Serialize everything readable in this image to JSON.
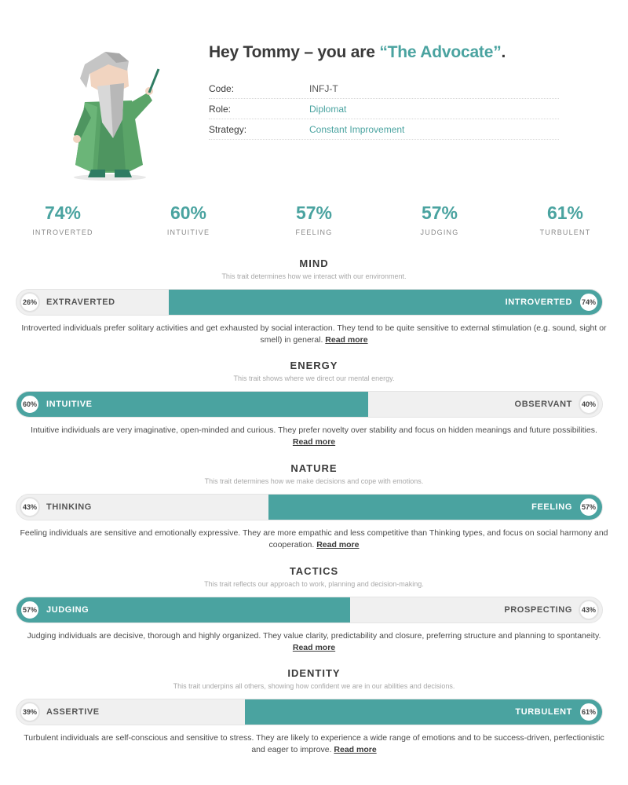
{
  "header": {
    "greeting": "Hey Tommy – you are ",
    "type_name": "“The Advocate”",
    "punct": ".",
    "rows": [
      {
        "label": "Code:",
        "value": "INFJ-T"
      },
      {
        "label": "Role:",
        "value": "Diplomat"
      },
      {
        "label": "Strategy:",
        "value": "Constant Improvement"
      }
    ]
  },
  "summary": [
    {
      "pct": "74%",
      "label": "INTROVERTED"
    },
    {
      "pct": "60%",
      "label": "INTUITIVE"
    },
    {
      "pct": "57%",
      "label": "FEELING"
    },
    {
      "pct": "57%",
      "label": "JUDGING"
    },
    {
      "pct": "61%",
      "label": "TURBULENT"
    }
  ],
  "traits": [
    {
      "title": "MIND",
      "subtitle": "This trait determines how we interact with our environment.",
      "left_pct": "26%",
      "left_name": "EXTRAVERTED",
      "right_pct": "74%",
      "right_name": "INTROVERTED",
      "dominant": "right",
      "dominant_fraction": 0.74,
      "desc": "Introverted individuals prefer solitary activities and get exhausted by social interaction. They tend to be quite sensitive to external stimulation (e.g. sound, sight or smell) in general.",
      "read_more": "Read more"
    },
    {
      "title": "ENERGY",
      "subtitle": "This trait shows where we direct our mental energy.",
      "left_pct": "60%",
      "left_name": "INTUITIVE",
      "right_pct": "40%",
      "right_name": "OBSERVANT",
      "dominant": "left",
      "dominant_fraction": 0.6,
      "desc": "Intuitive individuals are very imaginative, open-minded and curious. They prefer novelty over stability and focus on hidden meanings and future possibilities.",
      "read_more": "Read more"
    },
    {
      "title": "NATURE",
      "subtitle": "This trait determines how we make decisions and cope with emotions.",
      "left_pct": "43%",
      "left_name": "THINKING",
      "right_pct": "57%",
      "right_name": "FEELING",
      "dominant": "right",
      "dominant_fraction": 0.57,
      "desc": "Feeling individuals are sensitive and emotionally expressive. They are more empathic and less competitive than Thinking types, and focus on social harmony and cooperation.",
      "read_more": "Read more"
    },
    {
      "title": "TACTICS",
      "subtitle": "This trait reflects our approach to work, planning and decision-making.",
      "left_pct": "57%",
      "left_name": "JUDGING",
      "right_pct": "43%",
      "right_name": "PROSPECTING",
      "dominant": "left",
      "dominant_fraction": 0.57,
      "desc": "Judging individuals are decisive, thorough and highly organized. They value clarity, predictability and closure, preferring structure and planning to spontaneity.",
      "read_more": "Read more"
    },
    {
      "title": "IDENTITY",
      "subtitle": "This trait underpins all others, showing how confident we are in our abilities and decisions.",
      "left_pct": "39%",
      "left_name": "ASSERTIVE",
      "right_pct": "61%",
      "right_name": "TURBULENT",
      "dominant": "right",
      "dominant_fraction": 0.61,
      "desc": "Turbulent individuals are self-conscious and sensitive to stress. They are likely to experience a wide range of emotions and to be success-driven, perfectionistic and eager to improve.",
      "read_more": "Read more"
    }
  ],
  "colors": {
    "accent": "#4aa3a0",
    "bar_bg": "#f0f0f0",
    "robe": "#5aa468"
  }
}
